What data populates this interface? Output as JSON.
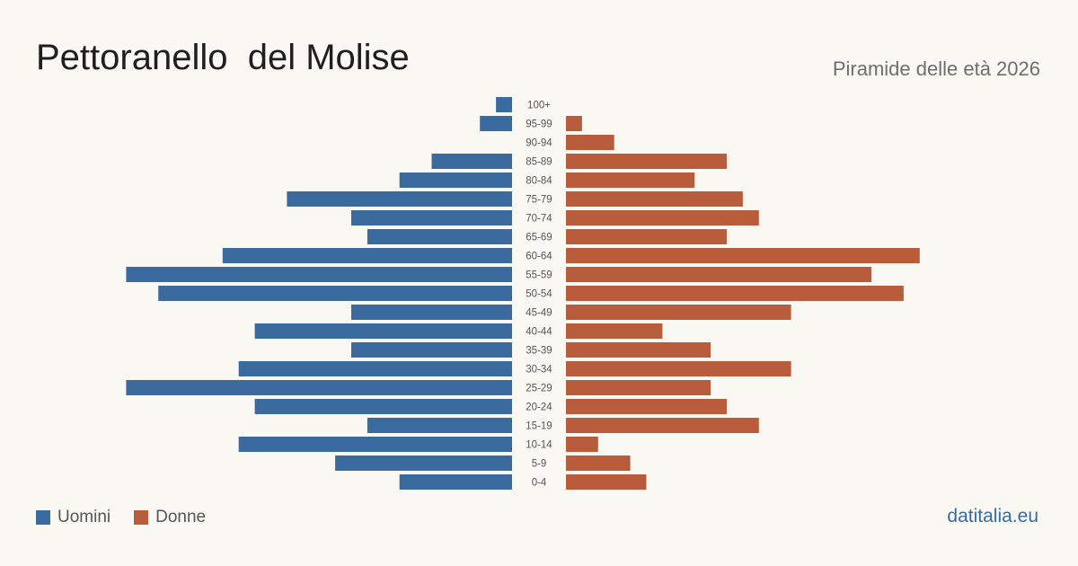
{
  "header": {
    "title": "Pettoranello  del Molise",
    "subtitle": "Piramide delle età 2026"
  },
  "legend": {
    "men_label": "Uomini",
    "women_label": "Donne"
  },
  "brand": "datitalia.eu",
  "colors": {
    "men": "#3a6a9e",
    "women": "#b95c3c",
    "background": "#faf8f3"
  },
  "chart_data": {
    "type": "bar",
    "orientation": "horizontal-pyramid",
    "categories": [
      "100+",
      "95-99",
      "90-94",
      "85-89",
      "80-84",
      "75-79",
      "70-74",
      "65-69",
      "60-64",
      "55-59",
      "50-54",
      "45-49",
      "40-44",
      "35-39",
      "30-34",
      "25-29",
      "20-24",
      "15-19",
      "10-14",
      "5-9",
      "0-4"
    ],
    "series": [
      {
        "name": "Uomini",
        "values": [
          1,
          2,
          0,
          5,
          7,
          14,
          10,
          9,
          18,
          24,
          22,
          10,
          16,
          10,
          17,
          24,
          16,
          9,
          17,
          11,
          7
        ]
      },
      {
        "name": "Donne",
        "values": [
          0,
          1,
          3,
          10,
          8,
          11,
          12,
          10,
          22,
          19,
          21,
          14,
          6,
          9,
          14,
          9,
          10,
          12,
          2,
          4,
          5
        ]
      }
    ]
  }
}
